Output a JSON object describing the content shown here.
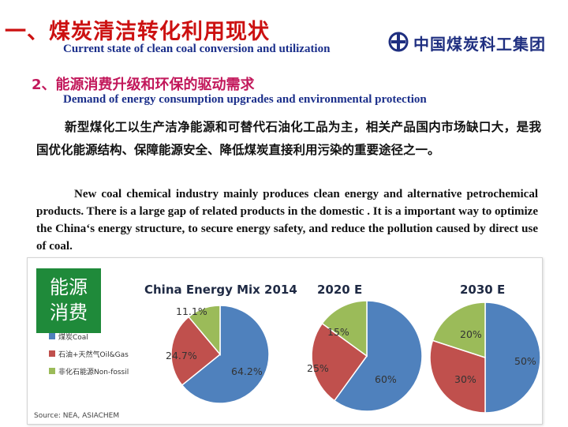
{
  "header": {
    "title_cn": "一、煤炭清洁转化利用现状",
    "title_en": "Current state of clean coal conversion and utilization",
    "logo_text": "中国煤炭科工集团"
  },
  "section": {
    "subtitle_cn": "2、能源消费升级和环保的驱动需求",
    "subtitle_en": "Demand of energy consumption upgrades and environmental protection",
    "body_cn": "新型煤化工以生产洁净能源和可替代石油化工品为主，相关产品国内市场缺口大，是我国优化能源结构、保障能源安全、降低煤炭直接利用污染的重要途径之一。",
    "body_en": "New coal chemical industry mainly produces clean energy and alternative petrochemical products. There is a large gap of related products in the domestic . It is a important way to optimize the China‘s energy structure, to secure energy safety, and reduce the pollution caused by direct use of coal."
  },
  "figure": {
    "energy_label_line1": "能源",
    "energy_label_line2": "消费",
    "source": "Source: NEA, ASIACHEM",
    "colors": {
      "coal": "#4f81bd",
      "oil_gas": "#c0504d",
      "non_fossil": "#9bbb59"
    },
    "legend": [
      {
        "label": "煤炭Coal",
        "color": "#4f81bd"
      },
      {
        "label": "石油+天然气Oil&Gas",
        "color": "#c0504d"
      },
      {
        "label": "非化石能源Non-fossil",
        "color": "#9bbb59"
      }
    ]
  },
  "chart_data": [
    {
      "type": "pie",
      "title": "China Energy Mix 2014",
      "categories": [
        "煤炭Coal",
        "石油+天然气Oil&Gas",
        "非化石能源Non-fossil"
      ],
      "values": [
        64.2,
        24.7,
        11.1
      ],
      "labels": [
        "64.2%",
        "24.7%",
        "11.1%"
      ]
    },
    {
      "type": "pie",
      "title": "2020 E",
      "categories": [
        "煤炭Coal",
        "石油+天然气Oil&Gas",
        "非化石能源Non-fossil"
      ],
      "values": [
        60,
        25,
        15
      ],
      "labels": [
        "60%",
        "25%",
        "15%"
      ]
    },
    {
      "type": "pie",
      "title": "2030 E",
      "categories": [
        "煤炭Coal",
        "石油+天然气Oil&Gas",
        "非化石能源Non-fossil"
      ],
      "values": [
        50,
        30,
        20
      ],
      "labels": [
        "50%",
        "30%",
        "20%"
      ]
    }
  ]
}
